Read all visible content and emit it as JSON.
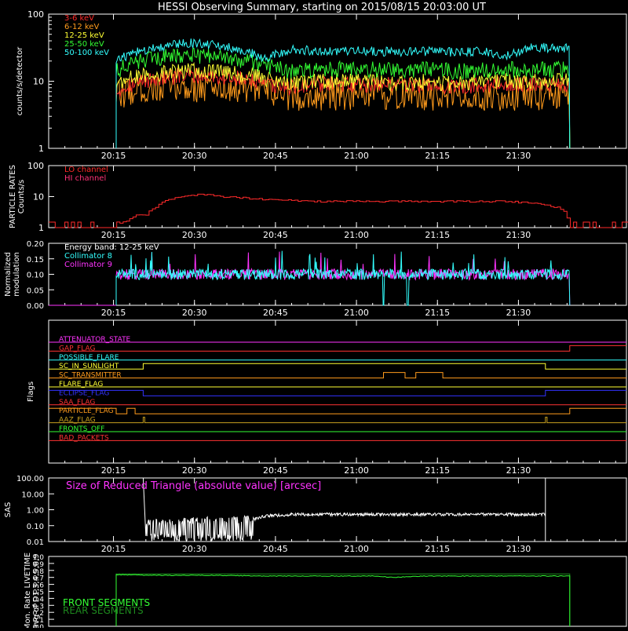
{
  "title": "HESSI Observing Summary, starting on 2015/08/15 20:03:00 UT",
  "chart_data": [
    {
      "type": "line",
      "panel": "count-rates",
      "ylabel": "counts/s/detector",
      "yscale": "log",
      "ylim": [
        1,
        100
      ],
      "yticks": [
        "1",
        "10",
        "100"
      ],
      "xticks": [
        "20:15",
        "20:30",
        "20:45",
        "21:00",
        "21:15",
        "21:30"
      ],
      "x_unit": "minutes since 20:03",
      "xlim": [
        0,
        107
      ],
      "data_start": 12.5,
      "data_end": 96.5,
      "series": [
        {
          "name": "3-6 keV",
          "color": "#ff2a2a",
          "x": [
            12.5,
            15,
            20,
            25,
            30,
            35,
            40,
            45,
            50,
            55,
            60,
            65,
            70,
            75,
            80,
            85,
            90,
            96.5
          ],
          "y": [
            7,
            9,
            11,
            12,
            12,
            11,
            9,
            8,
            9,
            9,
            9,
            9,
            9,
            8,
            9,
            9,
            9,
            9
          ]
        },
        {
          "name": "6-12 keV",
          "color": "#ff9b1c",
          "x": [
            12.5,
            15,
            20,
            25,
            30,
            35,
            40,
            45,
            50,
            55,
            60,
            65,
            70,
            75,
            80,
            85,
            90,
            96.5
          ],
          "y": [
            6,
            7,
            8,
            8,
            8,
            8,
            7,
            6,
            6,
            6,
            6,
            6,
            6,
            6,
            6,
            6,
            6,
            6
          ]
        },
        {
          "name": "12-25 keV",
          "color": "#ffff33",
          "x": [
            12.5,
            15,
            20,
            25,
            30,
            35,
            40,
            45,
            50,
            55,
            60,
            65,
            70,
            75,
            80,
            85,
            90,
            96.5
          ],
          "y": [
            9,
            11,
            13,
            14,
            14,
            13,
            11,
            9,
            10,
            10,
            10,
            9,
            10,
            9,
            10,
            10,
            10,
            10
          ]
        },
        {
          "name": "25-50 keV",
          "color": "#33ff33",
          "x": [
            12.5,
            15,
            20,
            25,
            30,
            35,
            40,
            45,
            50,
            55,
            60,
            65,
            70,
            75,
            80,
            85,
            90,
            96.5
          ],
          "y": [
            14,
            18,
            22,
            25,
            23,
            21,
            17,
            14,
            15,
            15,
            15,
            14,
            15,
            14,
            15,
            15,
            15,
            15
          ]
        },
        {
          "name": "50-100 keV",
          "color": "#33ffff",
          "x": [
            12.5,
            15,
            20,
            25,
            30,
            35,
            40,
            45,
            50,
            55,
            60,
            65,
            70,
            75,
            80,
            85,
            90,
            96.5
          ],
          "y": [
            20,
            25,
            32,
            38,
            35,
            30,
            22,
            30,
            28,
            28,
            28,
            27,
            28,
            27,
            28,
            24,
            32,
            31
          ]
        }
      ]
    },
    {
      "type": "line",
      "panel": "particle-rates",
      "ylabel": "PARTICLE RATES Counts/s",
      "yscale": "log",
      "ylim": [
        1,
        100
      ],
      "yticks": [
        "1",
        "10",
        "100"
      ],
      "xticks": [
        "20:15",
        "20:30",
        "20:45",
        "21:00",
        "21:15",
        "21:30"
      ],
      "series": [
        {
          "name": "LO channel",
          "color": "#ff2a2a",
          "x": [
            0,
            14,
            16,
            18,
            20,
            22,
            25,
            28,
            32,
            36,
            40,
            50,
            60,
            70,
            80,
            85,
            90,
            93,
            95,
            96.5,
            100,
            107
          ],
          "y": [
            1,
            1.5,
            2.5,
            2.5,
            5,
            8,
            10,
            12,
            10,
            9,
            8,
            7,
            7,
            7,
            7,
            7,
            6,
            5,
            4,
            1,
            1,
            1
          ]
        },
        {
          "name": "HI channel",
          "color": "#ff3377",
          "x": [
            0,
            107
          ],
          "y": [
            1,
            1
          ]
        }
      ]
    },
    {
      "type": "line",
      "panel": "modulation",
      "ylabel": "Normalized modulation",
      "ylim": [
        0,
        0.2
      ],
      "yticks": [
        "0.00",
        "0.05",
        "0.10",
        "0.15",
        "0.20"
      ],
      "xticks": [
        "20:15",
        "20:30",
        "20:45",
        "21:00",
        "21:15",
        "21:30"
      ],
      "annotation": "Energy band: 12-25 keV",
      "series": [
        {
          "name": "Collimator 8",
          "color": "#33ffff",
          "level": 0.1
        },
        {
          "name": "Collimator 9",
          "color": "#ff33ff",
          "level": 0.1
        }
      ]
    },
    {
      "type": "step",
      "panel": "flags",
      "ylabel": "Flags",
      "xticks": [
        "20:15",
        "20:30",
        "20:45",
        "21:00",
        "21:15",
        "21:30"
      ],
      "series": [
        {
          "name": "ATTENUATOR_STATE",
          "color": "#ff33ff",
          "x": [
            0,
            107
          ],
          "y": [
            0,
            0
          ]
        },
        {
          "name": "GAP_FLAG",
          "color": "#ff3333",
          "x": [
            0,
            96.5,
            96.5,
            107
          ],
          "y": [
            0,
            0,
            1,
            1
          ]
        },
        {
          "name": "POSSIBLE_FLARE",
          "color": "#33ffff",
          "x": [
            0,
            107
          ],
          "y": [
            0,
            0
          ]
        },
        {
          "name": "SC_IN_SUNLIGHT",
          "color": "#ffff33",
          "x": [
            0,
            17.5,
            17.5,
            92,
            92,
            107
          ],
          "y": [
            0,
            0,
            1,
            1,
            0,
            0
          ]
        },
        {
          "name": "SC_TRANSMITTER",
          "color": "#ff9b1c",
          "x": [
            0,
            62,
            62,
            66,
            66,
            68,
            68,
            73,
            73,
            107
          ],
          "y": [
            0,
            0,
            1,
            1,
            0,
            0,
            1,
            1,
            0,
            0
          ]
        },
        {
          "name": "FLARE_FLAG",
          "color": "#ffff33",
          "x": [
            0,
            107
          ],
          "y": [
            0,
            0
          ]
        },
        {
          "name": "ECLIPSE_FLAG",
          "color": "#3333ff",
          "x": [
            0,
            17.5,
            17.5,
            92,
            92,
            107
          ],
          "y": [
            1,
            1,
            0,
            0,
            1,
            1
          ]
        },
        {
          "name": "SAA_FLAG",
          "color": "#ff3333",
          "x": [
            0,
            107
          ],
          "y": [
            0,
            0
          ]
        },
        {
          "name": "PARTICLE_FLAG",
          "color": "#ff9b1c",
          "x": [
            0,
            12.5,
            12.5,
            14.5,
            14.5,
            16,
            16,
            17.5,
            17.5,
            96.5,
            96.5,
            107
          ],
          "y": [
            1,
            1,
            0,
            0,
            1,
            1,
            0,
            0,
            0,
            0,
            1,
            1
          ]
        },
        {
          "name": "AAZ_FLAG",
          "color": "#c8a020",
          "x": [
            0,
            17.5,
            17.5,
            17.8,
            17.8,
            92,
            92,
            92.3,
            92.3,
            107
          ],
          "y": [
            0,
            0,
            1,
            1,
            0,
            0,
            1,
            1,
            0,
            0
          ]
        },
        {
          "name": "FRONTS_OFF",
          "color": "#33ff33",
          "x": [
            0,
            107
          ],
          "y": [
            0,
            0
          ]
        },
        {
          "name": "BAD_PACKETS",
          "color": "#ff3333",
          "x": [
            0,
            107
          ],
          "y": [
            0,
            0
          ]
        }
      ]
    },
    {
      "type": "line",
      "panel": "sas",
      "ylabel": "SAS",
      "yscale": "log",
      "ylim": [
        0.01,
        100
      ],
      "yticks": [
        "0.01",
        "0.10",
        "1.00",
        "10.00",
        "100.00"
      ],
      "xticks": [
        "20:15",
        "20:30",
        "20:45",
        "21:00",
        "21:15",
        "21:30"
      ],
      "annotation": "Size of Reduced Triangle (absolute value) [arcsec]",
      "series": [
        {
          "name": "SAS",
          "color": "#ffffff",
          "x": [
            17.5,
            18,
            20,
            25,
            30,
            35,
            38,
            40,
            45,
            50,
            55,
            60,
            65,
            70,
            75,
            80,
            85,
            92
          ],
          "y": [
            100,
            0.15,
            0.15,
            0.18,
            0.2,
            0.22,
            0.25,
            0.4,
            0.5,
            0.5,
            0.5,
            0.5,
            0.5,
            0.5,
            0.5,
            0.5,
            0.5,
            0.5
          ]
        }
      ]
    },
    {
      "type": "line",
      "panel": "livetime",
      "ylabel": "Mon. Rate LIVETIME avg of D1,3,4,5,6,9",
      "ylim": [
        0,
        1.0
      ],
      "yticks": [
        "0.0",
        "0.1",
        "0.2",
        "0.3",
        "0.4",
        "0.5",
        "0.6",
        "0.7",
        "0.8",
        "0.9",
        "1.0"
      ],
      "series": [
        {
          "name": "FRONT SEGMENTS",
          "color": "#33ff33",
          "x": [
            12.5,
            20,
            30,
            40,
            50,
            60,
            64,
            67,
            70,
            80,
            90,
            96.5
          ],
          "y": [
            0.74,
            0.73,
            0.73,
            0.72,
            0.72,
            0.72,
            0.7,
            0.71,
            0.72,
            0.72,
            0.72,
            0.72
          ]
        },
        {
          "name": "REAR SEGMENTS",
          "color": "#1e8a1e",
          "x": [
            12.5,
            96.5
          ],
          "y": [
            0.75,
            0.75
          ]
        }
      ]
    }
  ]
}
